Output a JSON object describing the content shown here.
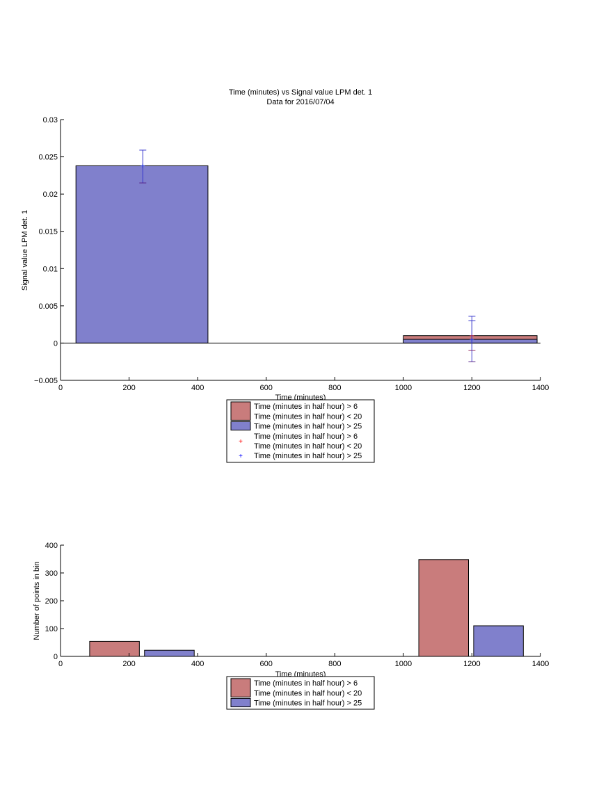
{
  "chart_data": [
    {
      "type": "bar",
      "title": "Time (minutes) vs Signal value LPM det. 1",
      "subtitle": "Data for 2016/07/04",
      "xlabel": "Time (minutes)",
      "ylabel": "Signal value LPM det. 1",
      "xlim": [
        0,
        1400
      ],
      "ylim": [
        -0.005,
        0.03
      ],
      "xticks": [
        0,
        200,
        400,
        600,
        800,
        1000,
        1200,
        1400
      ],
      "xtick_labels": [
        "0",
        "200",
        "400",
        "600",
        "800",
        "1000",
        "1200",
        "1400"
      ],
      "yticks": [
        -0.005,
        0,
        0.005,
        0.01,
        0.015,
        0.02,
        0.025,
        0.03
      ],
      "ytick_labels": [
        "−0.005",
        "0",
        "0.005",
        "0.01",
        "0.015",
        "0.02",
        "0.025",
        "0.03"
      ],
      "baseline_line": true,
      "series": [
        {
          "color": "#c97c7c",
          "bars": [
            {
              "x_start": 1000,
              "x_end": 1390,
              "value": 0.001
            }
          ],
          "errorbars": [
            {
              "x": 1200,
              "value": 0.001,
              "low": -0.001,
              "high": 0.003
            }
          ]
        },
        {
          "color": "#8080cc",
          "bars": [
            {
              "x_start": 45,
              "x_end": 430,
              "value": 0.0238
            },
            {
              "x_start": 1000,
              "x_end": 1390,
              "value": 0.0005
            }
          ],
          "errorbars": [
            {
              "x": 240,
              "value": 0.0238,
              "low": 0.0215,
              "high": 0.0259
            },
            {
              "x": 1200,
              "value": 0.0005,
              "low": -0.0025,
              "high": 0.0036
            }
          ]
        }
      ],
      "legend": {
        "placement": "below",
        "entries": [
          {
            "kind": "patch",
            "color": "#c97c7c",
            "lines": [
              "Time (minutes in half hour) > 6",
              "Time (minutes in half hour) < 20"
            ]
          },
          {
            "kind": "patch",
            "color": "#8080cc",
            "lines": [
              "Time (minutes in half hour) > 25"
            ]
          },
          {
            "kind": "marker",
            "color": "#ff0000",
            "symbol": "+",
            "lines": [
              "Time (minutes in half hour) > 6",
              "Time (minutes in half hour) < 20"
            ]
          },
          {
            "kind": "marker",
            "color": "#0000ff",
            "symbol": "+",
            "lines": [
              "Time (minutes in half hour) > 25"
            ]
          }
        ]
      }
    },
    {
      "type": "bar",
      "title": "",
      "xlabel": "Time (minutes)",
      "ylabel": "Number of points in bin",
      "xlim": [
        0,
        1400
      ],
      "ylim": [
        0,
        400
      ],
      "xticks": [
        0,
        200,
        400,
        600,
        800,
        1000,
        1200,
        1400
      ],
      "xtick_labels": [
        "0",
        "200",
        "400",
        "600",
        "800",
        "1000",
        "1200",
        "1400"
      ],
      "yticks": [
        0,
        100,
        200,
        300,
        400
      ],
      "ytick_labels": [
        "0",
        "100",
        "200",
        "300",
        "400"
      ],
      "baseline_line": false,
      "series": [
        {
          "color": "#c97c7c",
          "bars": [
            {
              "x_start": 85,
              "x_end": 230,
              "value": 54
            },
            {
              "x_start": 1045,
              "x_end": 1190,
              "value": 348
            }
          ],
          "errorbars": []
        },
        {
          "color": "#8080cc",
          "bars": [
            {
              "x_start": 245,
              "x_end": 390,
              "value": 22
            },
            {
              "x_start": 1205,
              "x_end": 1350,
              "value": 110
            }
          ],
          "errorbars": []
        }
      ],
      "legend": {
        "placement": "below",
        "entries": [
          {
            "kind": "patch",
            "color": "#c97c7c",
            "lines": [
              "Time (minutes in half hour) > 6",
              "Time (minutes in half hour) < 20"
            ]
          },
          {
            "kind": "patch",
            "color": "#8080cc",
            "lines": [
              "Time (minutes in half hour) > 25"
            ]
          }
        ]
      }
    }
  ]
}
